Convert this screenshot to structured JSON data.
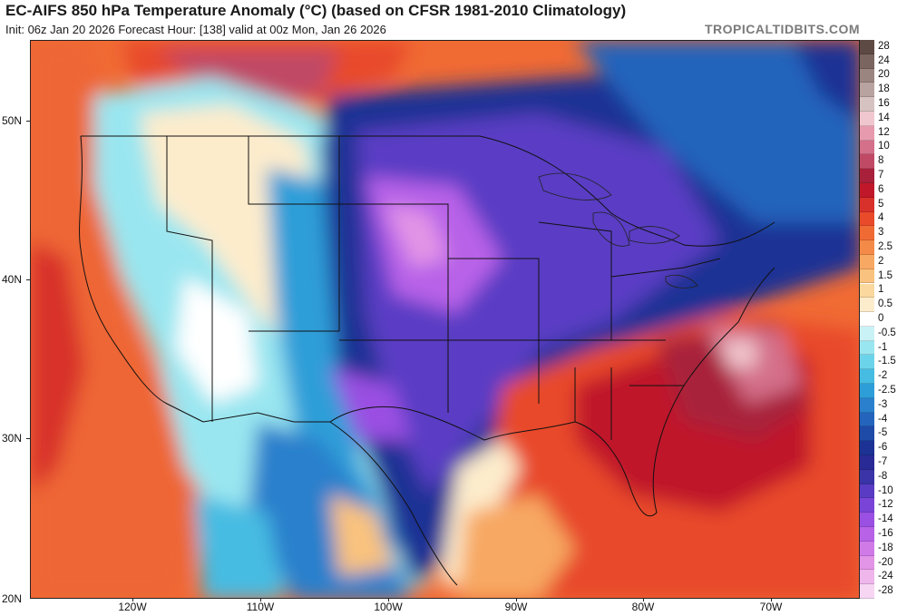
{
  "header": {
    "title": "EC-AIFS 850 hPa Temperature Anomaly (°C) (based on CFSR 1981-2010 Climatology)",
    "subtitle": "Init: 06z Jan 20 2026   Forecast Hour: [138]   valid at 00z Mon, Jan 26 2026",
    "brand": "TROPICALTIDBITS.COM"
  },
  "map": {
    "lat_labels": [
      "50N",
      "40N",
      "30N",
      "20N"
    ],
    "lon_labels": [
      "120W",
      "110W",
      "100W",
      "90W",
      "80W",
      "70W"
    ]
  },
  "colorbar": {
    "items": [
      {
        "label": "28",
        "color": "#5e4a44"
      },
      {
        "label": "24",
        "color": "#7a6560"
      },
      {
        "label": "20",
        "color": "#9a8580"
      },
      {
        "label": "18",
        "color": "#b8a3a0"
      },
      {
        "label": "16",
        "color": "#d6c3c1"
      },
      {
        "label": "14",
        "color": "#f1c7cf"
      },
      {
        "label": "12",
        "color": "#e79aae"
      },
      {
        "label": "10",
        "color": "#d4708a"
      },
      {
        "label": "8",
        "color": "#c04a66"
      },
      {
        "label": "7",
        "color": "#a8203a"
      },
      {
        "label": "6",
        "color": "#c0182a"
      },
      {
        "label": "5",
        "color": "#d8302a"
      },
      {
        "label": "4",
        "color": "#e84a2a"
      },
      {
        "label": "3",
        "color": "#f06a34"
      },
      {
        "label": "2.5",
        "color": "#f48a48"
      },
      {
        "label": "2",
        "color": "#f7a862"
      },
      {
        "label": "1.5",
        "color": "#f9c27e"
      },
      {
        "label": "1",
        "color": "#fbd89e"
      },
      {
        "label": "0.5",
        "color": "#fdeccc"
      },
      {
        "label": "0",
        "color": "#ffffff"
      },
      {
        "label": "-0.5",
        "color": "#c8f2f6"
      },
      {
        "label": "-1",
        "color": "#9ae6f0"
      },
      {
        "label": "-1.5",
        "color": "#6cd4ea"
      },
      {
        "label": "-2",
        "color": "#46bce2"
      },
      {
        "label": "-2.5",
        "color": "#2e9ed8"
      },
      {
        "label": "-3",
        "color": "#2a80cc"
      },
      {
        "label": "-4",
        "color": "#2464bc"
      },
      {
        "label": "-5",
        "color": "#1e4aa8"
      },
      {
        "label": "-6",
        "color": "#1c3294"
      },
      {
        "label": "-7",
        "color": "#2a2a96"
      },
      {
        "label": "-8",
        "color": "#3a34a8"
      },
      {
        "label": "-10",
        "color": "#5a3cc4"
      },
      {
        "label": "-12",
        "color": "#7a44d8"
      },
      {
        "label": "-14",
        "color": "#9a50e2"
      },
      {
        "label": "-16",
        "color": "#b862e8"
      },
      {
        "label": "-18",
        "color": "#d07ae8"
      },
      {
        "label": "-20",
        "color": "#e294e6"
      },
      {
        "label": "-24",
        "color": "#efb6ec"
      },
      {
        "label": "-28",
        "color": "#f6d6f2"
      }
    ]
  }
}
